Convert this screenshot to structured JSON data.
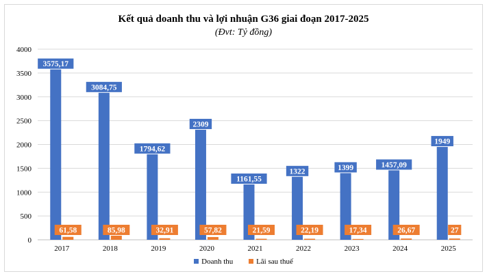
{
  "chart_data": {
    "type": "bar",
    "title": "Kết quả doanh thu và lợi nhuận G36 giai đoạn 2017-2025",
    "subtitle": "(Đvt: Tỷ đồng)",
    "categories": [
      "2017",
      "2018",
      "2019",
      "2020",
      "2021",
      "2022",
      "2023",
      "2024",
      "2025"
    ],
    "series": [
      {
        "name": "Doanh thu",
        "color": "#4472c4",
        "values": [
          3575.17,
          3084.75,
          1794.62,
          2309,
          1161.55,
          1322,
          1399,
          1457.09,
          1949
        ],
        "labels": [
          "3575,17",
          "3084,75",
          "1794,62",
          "2309",
          "1161,55",
          "1322",
          "1399",
          "1457,09",
          "1949"
        ]
      },
      {
        "name": "Lãi sau thuế",
        "color": "#ed7d31",
        "values": [
          61.58,
          85.98,
          32.91,
          57.82,
          21.59,
          22.19,
          17.34,
          26.67,
          27
        ],
        "labels": [
          "61,58",
          "85,98",
          "32,91",
          "57,82",
          "21,59",
          "22,19",
          "17,34",
          "26,67",
          "27"
        ]
      }
    ],
    "yticks": [
      "0",
      "500",
      "1000",
      "1500",
      "2000",
      "2500",
      "3000",
      "3500",
      "4000"
    ],
    "ylim": [
      0,
      4000
    ],
    "grid": true,
    "legend_position": "bottom"
  }
}
